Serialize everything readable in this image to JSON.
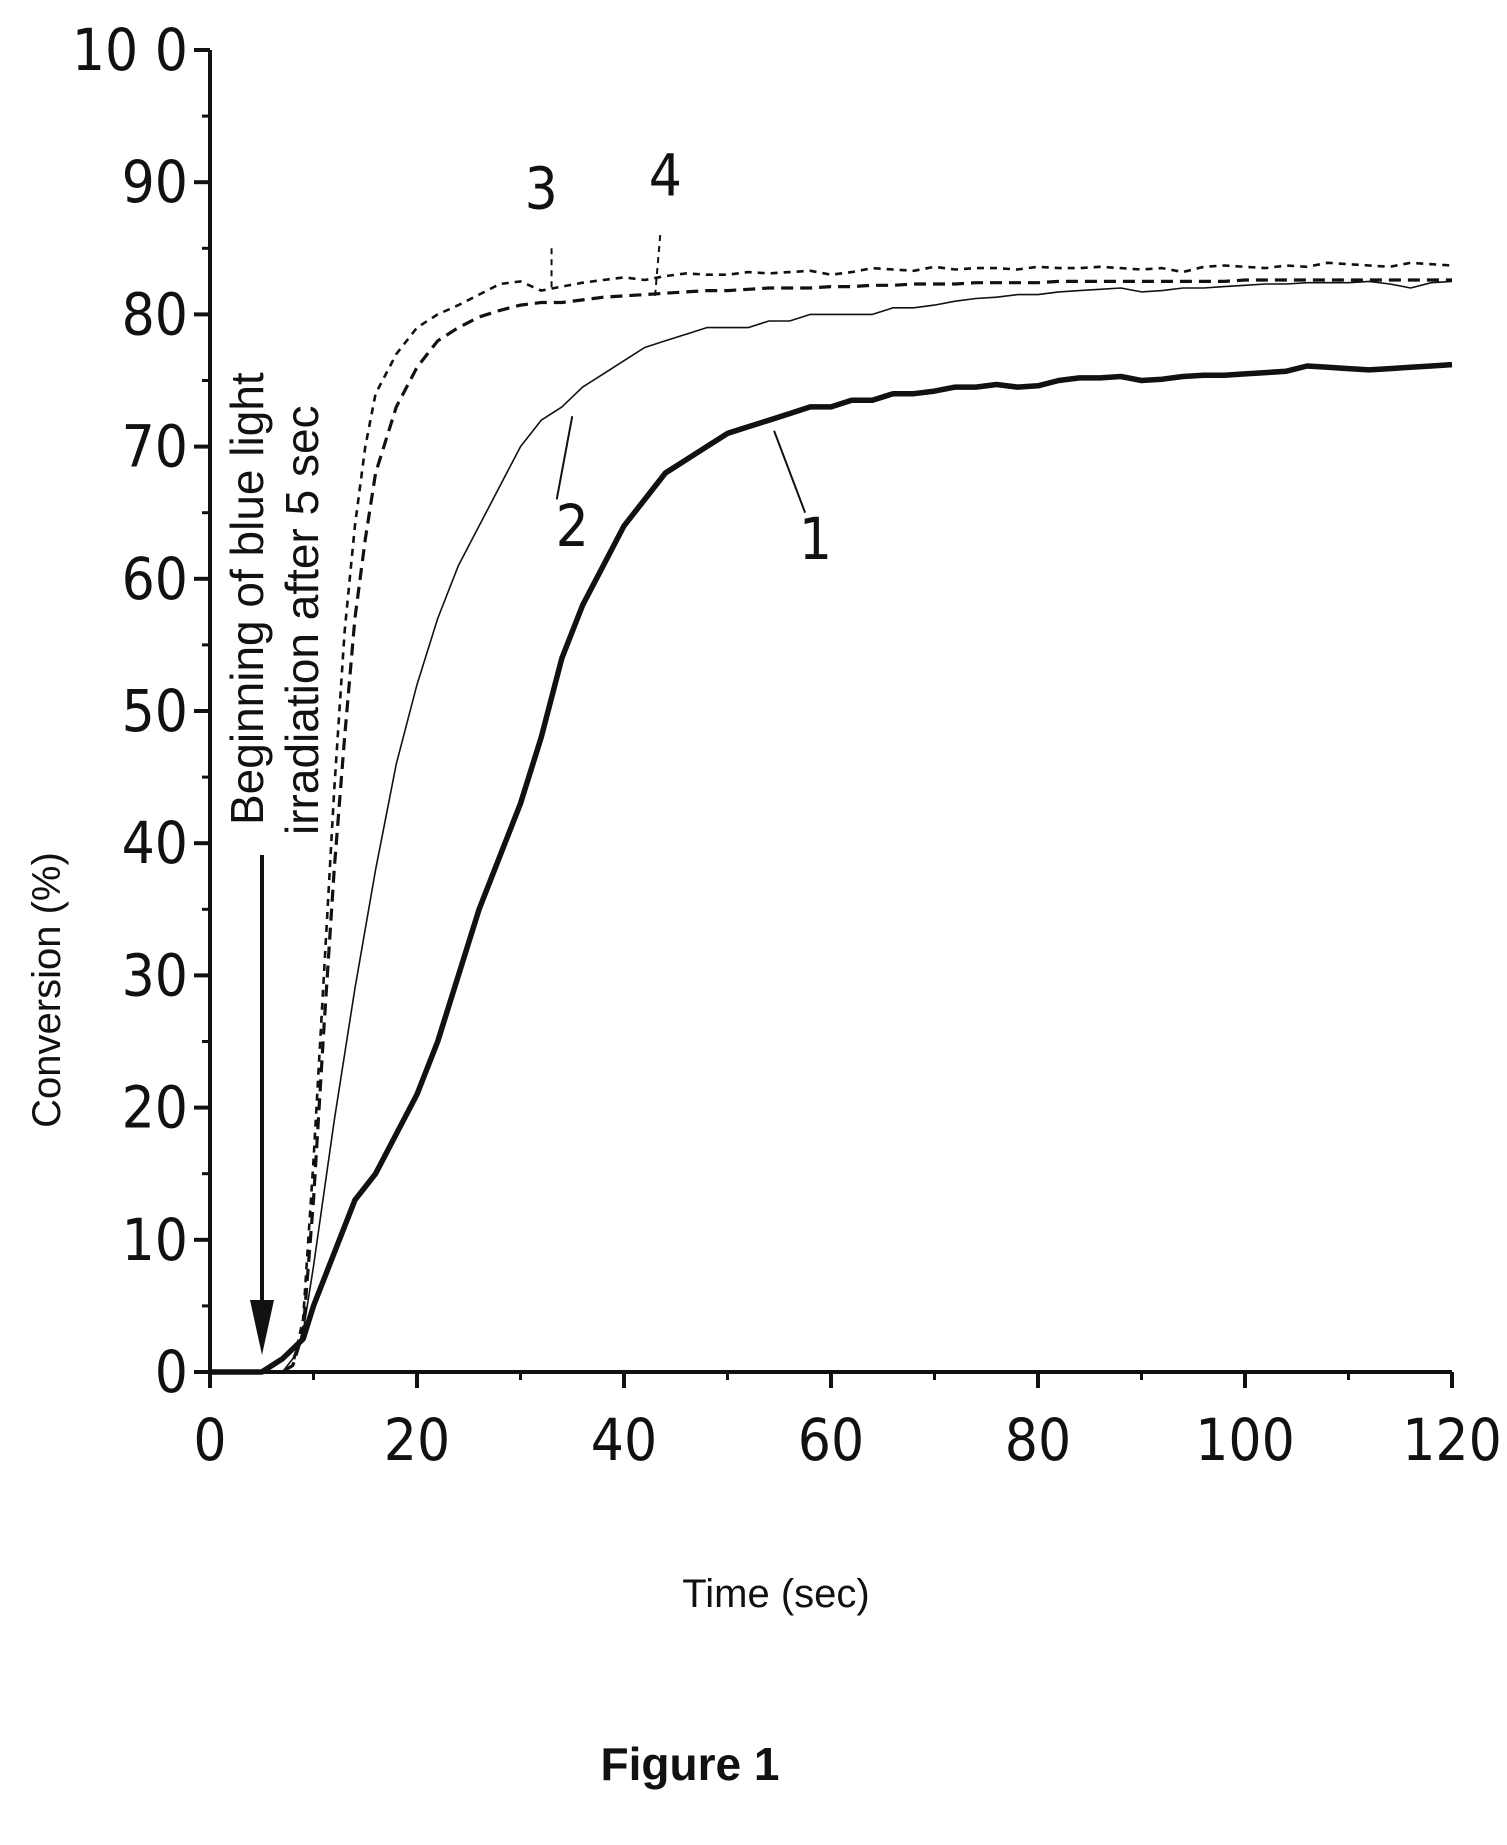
{
  "chart_data": {
    "type": "line",
    "xlabel": "Time (sec)",
    "ylabel": "Conversion (%)",
    "xlim": [
      0,
      120
    ],
    "ylim": [
      0,
      100
    ],
    "x_ticks": [
      "0",
      "20",
      "40",
      "60",
      "80",
      "100",
      "120"
    ],
    "y_ticks": [
      "0",
      "10",
      "20",
      "30",
      "40",
      "50",
      "60",
      "70",
      "80",
      "90",
      "10 0"
    ],
    "grid": false,
    "series": [
      {
        "name": "1",
        "x": [
          0,
          5,
          7,
          9,
          10,
          12,
          14,
          16,
          18,
          20,
          22,
          24,
          26,
          28,
          30,
          32,
          34,
          36,
          38,
          40,
          42,
          44,
          46,
          48,
          50,
          52,
          54,
          56,
          58,
          60,
          62,
          64,
          66,
          68,
          70,
          72,
          74,
          76,
          78,
          80,
          82,
          84,
          86,
          88,
          90,
          92,
          94,
          96,
          98,
          100,
          102,
          104,
          106,
          108,
          110,
          112,
          114,
          116,
          118,
          120
        ],
        "y": [
          0,
          0,
          1,
          2.5,
          5,
          9,
          13,
          15,
          18,
          21,
          25,
          30,
          35,
          39,
          43,
          48,
          54,
          58,
          61,
          64,
          66,
          68,
          69,
          70,
          71,
          71.5,
          72,
          72.5,
          73,
          73,
          73.5,
          73.5,
          74,
          74,
          74.2,
          74.5,
          74.5,
          74.7,
          74.5,
          74.6,
          75,
          75.2,
          75.2,
          75.3,
          75.0,
          75.1,
          75.3,
          75.4,
          75.4,
          75.5,
          75.6,
          75.7,
          76.1,
          76.0,
          75.9,
          75.8,
          75.9,
          76.0,
          76.1,
          76.2
        ]
      },
      {
        "name": "2",
        "x": [
          0,
          5,
          7,
          8,
          9,
          10,
          12,
          14,
          16,
          18,
          20,
          22,
          24,
          26,
          28,
          30,
          32,
          34,
          36,
          38,
          40,
          42,
          44,
          46,
          48,
          50,
          52,
          54,
          56,
          58,
          60,
          62,
          64,
          66,
          68,
          70,
          72,
          74,
          76,
          78,
          80,
          82,
          84,
          86,
          88,
          90,
          92,
          94,
          96,
          98,
          100,
          102,
          104,
          106,
          108,
          110,
          112,
          114,
          116,
          118,
          120
        ],
        "y": [
          0,
          0,
          0,
          1,
          3,
          8,
          19,
          29,
          38,
          46,
          52,
          57,
          61,
          64,
          67,
          70,
          72,
          73,
          74.5,
          75.5,
          76.5,
          77.5,
          78,
          78.5,
          79,
          79,
          79,
          79.5,
          79.5,
          80,
          80,
          80,
          80,
          80.5,
          80.5,
          80.7,
          81,
          81.2,
          81.3,
          81.5,
          81.5,
          81.7,
          81.8,
          81.9,
          82,
          81.7,
          81.8,
          82,
          82,
          82.1,
          82.2,
          82.3,
          82.3,
          82.4,
          82.4,
          82.4,
          82.5,
          82.3,
          82.0,
          82.4,
          82.5
        ]
      },
      {
        "name": "3",
        "x": [
          0,
          5,
          7,
          8,
          9,
          10,
          11,
          12,
          13,
          14,
          15,
          16,
          18,
          20,
          22,
          24,
          26,
          28,
          30,
          32,
          34,
          36,
          38,
          40,
          42,
          44,
          46,
          48,
          50,
          52,
          54,
          56,
          58,
          60,
          62,
          64,
          66,
          68,
          70,
          72,
          74,
          76,
          78,
          80,
          82,
          84,
          86,
          88,
          90,
          92,
          94,
          96,
          98,
          100,
          102,
          104,
          106,
          108,
          110,
          112,
          114,
          116,
          118,
          120
        ],
        "y": [
          0,
          0,
          0,
          0.5,
          4,
          16,
          30,
          44,
          56,
          64,
          70,
          74,
          77,
          79,
          80,
          80.7,
          81.5,
          82.3,
          82.5,
          81.8,
          82.1,
          82.4,
          82.6,
          82.8,
          82.6,
          82.9,
          83.1,
          83.0,
          83.0,
          83.2,
          83.1,
          83.2,
          83.3,
          83.0,
          83.2,
          83.5,
          83.4,
          83.3,
          83.6,
          83.4,
          83.5,
          83.5,
          83.4,
          83.6,
          83.5,
          83.5,
          83.6,
          83.5,
          83.4,
          83.5,
          83.2,
          83.6,
          83.7,
          83.6,
          83.5,
          83.7,
          83.6,
          83.9,
          83.8,
          83.7,
          83.6,
          83.9,
          83.8,
          83.7
        ]
      },
      {
        "name": "4",
        "x": [
          0,
          5,
          7,
          8,
          9,
          10,
          11,
          12,
          13,
          14,
          15,
          16,
          18,
          20,
          22,
          24,
          26,
          28,
          30,
          32,
          34,
          36,
          38,
          40,
          42,
          44,
          46,
          48,
          50,
          52,
          54,
          56,
          58,
          60,
          62,
          64,
          66,
          68,
          70,
          72,
          74,
          76,
          78,
          80,
          82,
          84,
          86,
          88,
          90,
          92,
          94,
          96,
          98,
          100,
          102,
          104,
          106,
          108,
          110,
          112,
          114,
          116,
          118,
          120
        ],
        "y": [
          0,
          0,
          0,
          0.5,
          3,
          13,
          26,
          38,
          48,
          57,
          63,
          68,
          73,
          76,
          78,
          79,
          79.8,
          80.3,
          80.7,
          80.9,
          80.9,
          81.1,
          81.3,
          81.4,
          81.5,
          81.6,
          81.7,
          81.8,
          81.8,
          81.9,
          82.0,
          82.0,
          82.0,
          82.1,
          82.1,
          82.2,
          82.2,
          82.3,
          82.3,
          82.3,
          82.4,
          82.4,
          82.4,
          82.4,
          82.5,
          82.5,
          82.5,
          82.5,
          82.5,
          82.5,
          82.5,
          82.5,
          82.5,
          82.6,
          82.6,
          82.6,
          82.6,
          82.6,
          82.6,
          82.6,
          82.6,
          82.6,
          82.6,
          82.6
        ]
      }
    ],
    "annotations": [
      {
        "text_lines": [
          "Beginning of blue light",
          "irradiation after 5 sec"
        ],
        "x": 5,
        "y": 0
      }
    ],
    "caption": "Figure 1"
  }
}
